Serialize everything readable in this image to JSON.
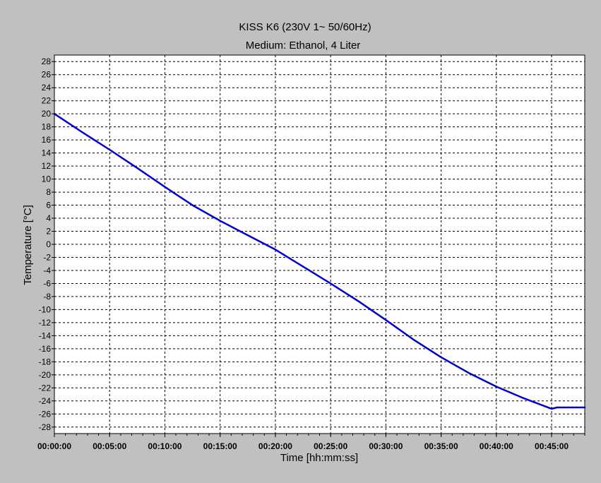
{
  "chart_data": {
    "type": "line",
    "title": "KISS K6 (230V 1~ 50/60Hz)",
    "subtitle": "Medium: Ethanol, 4 Liter",
    "xlabel": "Time [hh:mm:ss]",
    "ylabel": "Temperature [°C]",
    "x_unit": "minutes",
    "xlim": [
      0,
      48
    ],
    "ylim": [
      -29,
      29
    ],
    "x_ticks": [
      {
        "value": 0,
        "label": "00:00:00"
      },
      {
        "value": 5,
        "label": "00:05:00"
      },
      {
        "value": 10,
        "label": "00:10:00"
      },
      {
        "value": 15,
        "label": "00:15:00"
      },
      {
        "value": 20,
        "label": "00:20:00"
      },
      {
        "value": 25,
        "label": "00:25:00"
      },
      {
        "value": 30,
        "label": "00:30:00"
      },
      {
        "value": 35,
        "label": "00:35:00"
      },
      {
        "value": 40,
        "label": "00:40:00"
      },
      {
        "value": 45,
        "label": "00:45:00"
      }
    ],
    "y_ticks": [
      28,
      26,
      24,
      22,
      20,
      18,
      16,
      14,
      12,
      10,
      8,
      6,
      4,
      2,
      0,
      -2,
      -4,
      -6,
      -8,
      -10,
      -12,
      -14,
      -16,
      -18,
      -20,
      -22,
      -24,
      -26,
      -28
    ],
    "grid": true,
    "legend": "none",
    "series": [
      {
        "color": "#0000c8",
        "x": [
          0,
          2.5,
          5,
          7.5,
          10,
          12.5,
          15,
          17.5,
          20,
          22.5,
          25,
          27.5,
          30,
          32.5,
          35,
          37.5,
          40,
          42.5,
          45,
          45.5,
          48
        ],
        "values": [
          20,
          17.2,
          14.5,
          11.7,
          8.8,
          6.0,
          3.6,
          1.4,
          -0.8,
          -3.4,
          -6.0,
          -8.7,
          -11.6,
          -14.6,
          -17.3,
          -19.7,
          -21.8,
          -23.6,
          -25.2,
          -25.0,
          -25.0
        ]
      }
    ]
  }
}
